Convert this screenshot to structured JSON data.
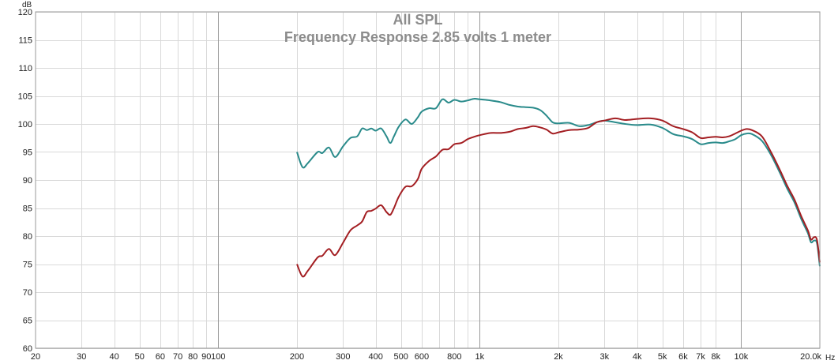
{
  "chart_data": {
    "type": "line",
    "title": "All SPL",
    "subtitle": "Frequency Response 2.85 volts 1 meter",
    "xlabel": "",
    "ylabel": "",
    "x_unit": "Hz",
    "y_unit": "dB",
    "x_scale": "log",
    "xlim": [
      20,
      20000
    ],
    "ylim": [
      60,
      120
    ],
    "grid": true,
    "legend": "none",
    "x_ticks": [
      {
        "value": 20,
        "label": "20"
      },
      {
        "value": 30,
        "label": "30"
      },
      {
        "value": 40,
        "label": "40"
      },
      {
        "value": 50,
        "label": "50"
      },
      {
        "value": 60,
        "label": "60"
      },
      {
        "value": 70,
        "label": "70"
      },
      {
        "value": 80,
        "label": "80"
      },
      {
        "value": 90,
        "label": "90"
      },
      {
        "value": 100,
        "label": "100"
      },
      {
        "value": 200,
        "label": "200"
      },
      {
        "value": 300,
        "label": "300"
      },
      {
        "value": 400,
        "label": "400"
      },
      {
        "value": 500,
        "label": "500"
      },
      {
        "value": 600,
        "label": "600"
      },
      {
        "value": 800,
        "label": "800"
      },
      {
        "value": 1000,
        "label": "1k"
      },
      {
        "value": 2000,
        "label": "2k"
      },
      {
        "value": 3000,
        "label": "3k"
      },
      {
        "value": 4000,
        "label": "4k"
      },
      {
        "value": 5000,
        "label": "5k"
      },
      {
        "value": 6000,
        "label": "6k"
      },
      {
        "value": 7000,
        "label": "7k"
      },
      {
        "value": 8000,
        "label": "8k"
      },
      {
        "value": 10000,
        "label": "10k"
      },
      {
        "value": 20000,
        "label": "20.0k"
      }
    ],
    "x_minor_grid": [
      700,
      900
    ],
    "x_major_grid": [
      100,
      1000,
      10000
    ],
    "y_ticks": [
      60,
      65,
      70,
      75,
      80,
      85,
      90,
      95,
      100,
      105,
      110,
      115,
      120
    ],
    "series": [
      {
        "color": "#2a8b8b",
        "points": [
          [
            200,
            95.0
          ],
          [
            210,
            92.3
          ],
          [
            220,
            93.0
          ],
          [
            240,
            95.0
          ],
          [
            250,
            94.8
          ],
          [
            265,
            95.8
          ],
          [
            280,
            94.1
          ],
          [
            300,
            96.0
          ],
          [
            320,
            97.5
          ],
          [
            340,
            97.8
          ],
          [
            355,
            99.2
          ],
          [
            370,
            98.9
          ],
          [
            385,
            99.2
          ],
          [
            400,
            98.8
          ],
          [
            420,
            99.2
          ],
          [
            440,
            97.8
          ],
          [
            455,
            96.6
          ],
          [
            470,
            97.8
          ],
          [
            490,
            99.5
          ],
          [
            520,
            100.8
          ],
          [
            550,
            100.0
          ],
          [
            580,
            101.2
          ],
          [
            600,
            102.2
          ],
          [
            640,
            102.8
          ],
          [
            680,
            102.8
          ],
          [
            720,
            104.4
          ],
          [
            760,
            103.8
          ],
          [
            800,
            104.3
          ],
          [
            850,
            104.0
          ],
          [
            900,
            104.2
          ],
          [
            950,
            104.5
          ],
          [
            1000,
            104.4
          ],
          [
            1100,
            104.2
          ],
          [
            1200,
            103.9
          ],
          [
            1300,
            103.4
          ],
          [
            1400,
            103.1
          ],
          [
            1500,
            103.0
          ],
          [
            1600,
            102.9
          ],
          [
            1700,
            102.5
          ],
          [
            1800,
            101.5
          ],
          [
            1900,
            100.3
          ],
          [
            2000,
            100.1
          ],
          [
            2200,
            100.2
          ],
          [
            2400,
            99.6
          ],
          [
            2600,
            99.8
          ],
          [
            2800,
            100.3
          ],
          [
            3000,
            100.6
          ],
          [
            3300,
            100.3
          ],
          [
            3600,
            100.0
          ],
          [
            4000,
            99.8
          ],
          [
            4500,
            99.9
          ],
          [
            5000,
            99.3
          ],
          [
            5500,
            98.2
          ],
          [
            6000,
            97.8
          ],
          [
            6500,
            97.3
          ],
          [
            7000,
            96.4
          ],
          [
            7500,
            96.6
          ],
          [
            8000,
            96.7
          ],
          [
            8500,
            96.6
          ],
          [
            9000,
            96.9
          ],
          [
            9500,
            97.3
          ],
          [
            10000,
            98.0
          ],
          [
            10500,
            98.3
          ],
          [
            11000,
            98.2
          ],
          [
            12000,
            97.0
          ],
          [
            13000,
            94.5
          ],
          [
            14000,
            91.5
          ],
          [
            15000,
            88.5
          ],
          [
            16000,
            86.0
          ],
          [
            17000,
            83.0
          ],
          [
            18000,
            80.5
          ],
          [
            18500,
            78.9
          ],
          [
            19000,
            79.2
          ],
          [
            19500,
            78.7
          ],
          [
            20000,
            74.6
          ]
        ]
      },
      {
        "color": "#a31e22",
        "points": [
          [
            200,
            75.0
          ],
          [
            210,
            72.8
          ],
          [
            220,
            73.8
          ],
          [
            240,
            76.2
          ],
          [
            250,
            76.5
          ],
          [
            265,
            77.7
          ],
          [
            280,
            76.6
          ],
          [
            300,
            78.8
          ],
          [
            320,
            81.0
          ],
          [
            340,
            81.9
          ],
          [
            355,
            82.6
          ],
          [
            370,
            84.3
          ],
          [
            385,
            84.5
          ],
          [
            400,
            84.9
          ],
          [
            420,
            85.5
          ],
          [
            440,
            84.3
          ],
          [
            455,
            83.8
          ],
          [
            470,
            85.0
          ],
          [
            490,
            87.0
          ],
          [
            520,
            88.8
          ],
          [
            550,
            88.9
          ],
          [
            580,
            90.2
          ],
          [
            600,
            92.0
          ],
          [
            640,
            93.4
          ],
          [
            680,
            94.2
          ],
          [
            720,
            95.4
          ],
          [
            760,
            95.5
          ],
          [
            800,
            96.4
          ],
          [
            850,
            96.6
          ],
          [
            900,
            97.3
          ],
          [
            950,
            97.7
          ],
          [
            1000,
            98.0
          ],
          [
            1100,
            98.4
          ],
          [
            1200,
            98.4
          ],
          [
            1300,
            98.6
          ],
          [
            1400,
            99.1
          ],
          [
            1500,
            99.3
          ],
          [
            1600,
            99.6
          ],
          [
            1700,
            99.4
          ],
          [
            1800,
            99.0
          ],
          [
            1900,
            98.3
          ],
          [
            2000,
            98.5
          ],
          [
            2200,
            98.9
          ],
          [
            2400,
            99.0
          ],
          [
            2600,
            99.3
          ],
          [
            2800,
            100.3
          ],
          [
            3000,
            100.6
          ],
          [
            3300,
            101.0
          ],
          [
            3600,
            100.7
          ],
          [
            4000,
            100.9
          ],
          [
            4500,
            101.0
          ],
          [
            5000,
            100.6
          ],
          [
            5500,
            99.6
          ],
          [
            6000,
            99.1
          ],
          [
            6500,
            98.5
          ],
          [
            7000,
            97.5
          ],
          [
            7500,
            97.6
          ],
          [
            8000,
            97.7
          ],
          [
            8500,
            97.6
          ],
          [
            9000,
            97.8
          ],
          [
            9500,
            98.3
          ],
          [
            10000,
            98.8
          ],
          [
            10500,
            99.1
          ],
          [
            11000,
            98.9
          ],
          [
            12000,
            97.8
          ],
          [
            13000,
            95.0
          ],
          [
            14000,
            92.0
          ],
          [
            15000,
            89.0
          ],
          [
            16000,
            86.5
          ],
          [
            17000,
            83.5
          ],
          [
            18000,
            81.0
          ],
          [
            18500,
            79.4
          ],
          [
            19000,
            79.8
          ],
          [
            19500,
            79.3
          ],
          [
            20000,
            75.3
          ]
        ]
      }
    ]
  }
}
